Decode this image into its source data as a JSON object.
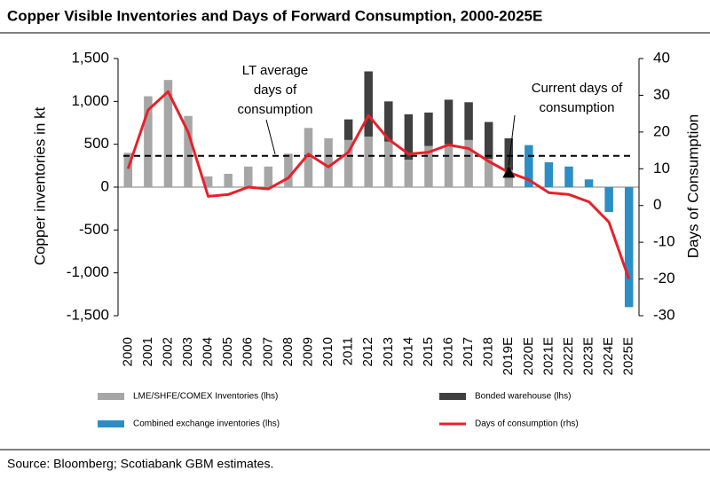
{
  "chart_data": {
    "type": "bar",
    "title": "Copper Visible Inventories and Days of Forward Consumption, 2000-2025E",
    "ylabel": "Copper inventories in kt",
    "y2label": "Days of Consumption",
    "categories": [
      "2000",
      "2001",
      "2002",
      "2003",
      "2004",
      "2005",
      "2006",
      "2007",
      "2008",
      "2009",
      "2010",
      "2011",
      "2012",
      "2013",
      "2014",
      "2015",
      "2016",
      "2017",
      "2018",
      "2019E",
      "2020E",
      "2021E",
      "2022E",
      "2023E",
      "2024E",
      "2025E"
    ],
    "series": [
      {
        "name": "LME/SHFE/COMEX Inventories (lhs)",
        "type": "bar",
        "color": "#a6a6a6",
        "values": [
          400,
          1060,
          1250,
          830,
          125,
          155,
          240,
          240,
          390,
          690,
          570,
          550,
          590,
          530,
          320,
          480,
          500,
          550,
          330,
          200,
          null,
          null,
          null,
          null,
          null,
          null
        ]
      },
      {
        "name": "Bonded warehouse (lhs)",
        "type": "bar",
        "color": "#404040",
        "values": [
          null,
          null,
          null,
          null,
          null,
          null,
          null,
          null,
          null,
          null,
          null,
          240,
          760,
          470,
          530,
          390,
          520,
          440,
          430,
          370,
          null,
          null,
          null,
          null,
          null,
          null
        ]
      },
      {
        "name": "Combined exchange inventories (lhs)",
        "type": "bar",
        "color": "#2b8ec4",
        "values": [
          null,
          null,
          null,
          null,
          null,
          null,
          null,
          null,
          null,
          null,
          null,
          null,
          null,
          null,
          null,
          null,
          null,
          null,
          null,
          null,
          490,
          290,
          240,
          90,
          -290,
          -1400
        ]
      },
      {
        "name": "Days of consumption (rhs)",
        "type": "line",
        "axis": "y2",
        "color": "#e8202a",
        "values": [
          10,
          26,
          31,
          20,
          2.5,
          3,
          5,
          4.5,
          7.5,
          14,
          10.5,
          14.5,
          24.5,
          18,
          14,
          14.5,
          16.5,
          15.5,
          12,
          9,
          7,
          3.5,
          3,
          1,
          -4.5,
          -20
        ]
      }
    ],
    "ylim": [
      -1500,
      1500
    ],
    "yticks": [
      {
        "value": -1500,
        "label": "-1,500"
      },
      {
        "value": -1000,
        "label": "-1,000"
      },
      -500,
      0,
      500,
      {
        "value": 1000,
        "label": "1,000"
      },
      {
        "value": 1500,
        "label": "1,500"
      }
    ],
    "y2lim": [
      -30,
      40
    ],
    "y2ticks": [
      -30,
      -20,
      -10,
      0,
      10,
      20,
      30,
      40
    ],
    "lt_average": 13.5,
    "annotations": [
      {
        "lines": [
          "LT average",
          "days of",
          "consumption"
        ]
      },
      {
        "lines": [
          "Current days of",
          "consumption"
        ]
      }
    ],
    "source": "Source: Bloomberg; Scotiabank GBM estimates."
  }
}
